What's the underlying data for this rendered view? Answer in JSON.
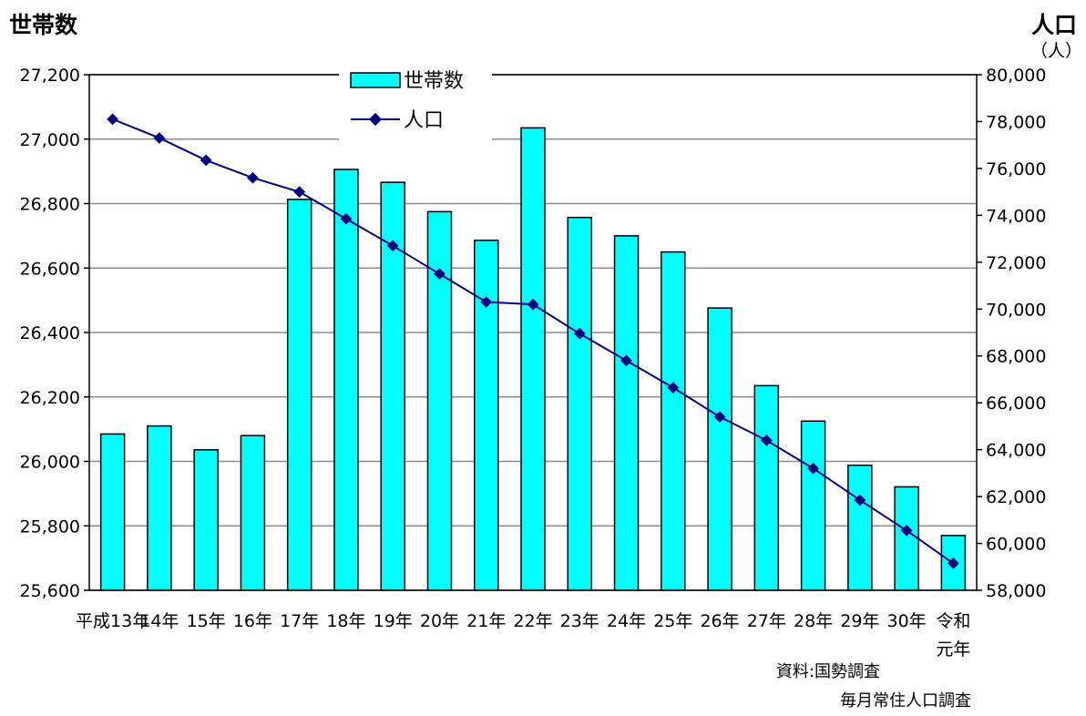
{
  "chart_data": {
    "type": "bar+line",
    "title_left": "世帯数",
    "title_right": "人口",
    "unit_right": "（人）",
    "categories": [
      [
        "平成13年"
      ],
      [
        "14年"
      ],
      [
        "15年"
      ],
      [
        "16年"
      ],
      [
        "17年"
      ],
      [
        "18年"
      ],
      [
        "19年"
      ],
      [
        "20年"
      ],
      [
        "21年"
      ],
      [
        "22年"
      ],
      [
        "23年"
      ],
      [
        "24年"
      ],
      [
        "25年"
      ],
      [
        "26年"
      ],
      [
        "27年"
      ],
      [
        "28年"
      ],
      [
        "29年"
      ],
      [
        "30年"
      ],
      [
        "令和",
        "元年"
      ]
    ],
    "series": [
      {
        "name": "世帯数",
        "kind": "bar",
        "axis": "left",
        "color": "#00ffff",
        "values": [
          26085,
          26110,
          26036,
          26080,
          26813,
          26906,
          26866,
          26775,
          26686,
          27035,
          26757,
          26700,
          26650,
          26476,
          26235,
          26125,
          25988,
          25921,
          25770
        ]
      },
      {
        "name": "人口",
        "kind": "line",
        "axis": "right",
        "color": "#000080",
        "values": [
          78100,
          77300,
          76350,
          75600,
          75000,
          73850,
          72700,
          71500,
          70300,
          70200,
          68950,
          67800,
          66650,
          65400,
          64400,
          63200,
          61850,
          60550,
          59150
        ]
      }
    ],
    "y_left": {
      "min": 25600,
      "max": 27200,
      "step": 200,
      "ticks": [
        "25,600",
        "25,800",
        "26,000",
        "26,200",
        "26,400",
        "26,600",
        "26,800",
        "27,000",
        "27,200"
      ]
    },
    "y_right": {
      "min": 58000,
      "max": 80000,
      "step": 2000,
      "ticks": [
        "58,000",
        "60,000",
        "62,000",
        "64,000",
        "66,000",
        "68,000",
        "70,000",
        "72,000",
        "74,000",
        "76,000",
        "78,000",
        "80,000"
      ]
    },
    "grid": true,
    "legend_position": "top-center",
    "source": [
      "資料:国勢調査",
      "毎月常住人口調査"
    ]
  }
}
